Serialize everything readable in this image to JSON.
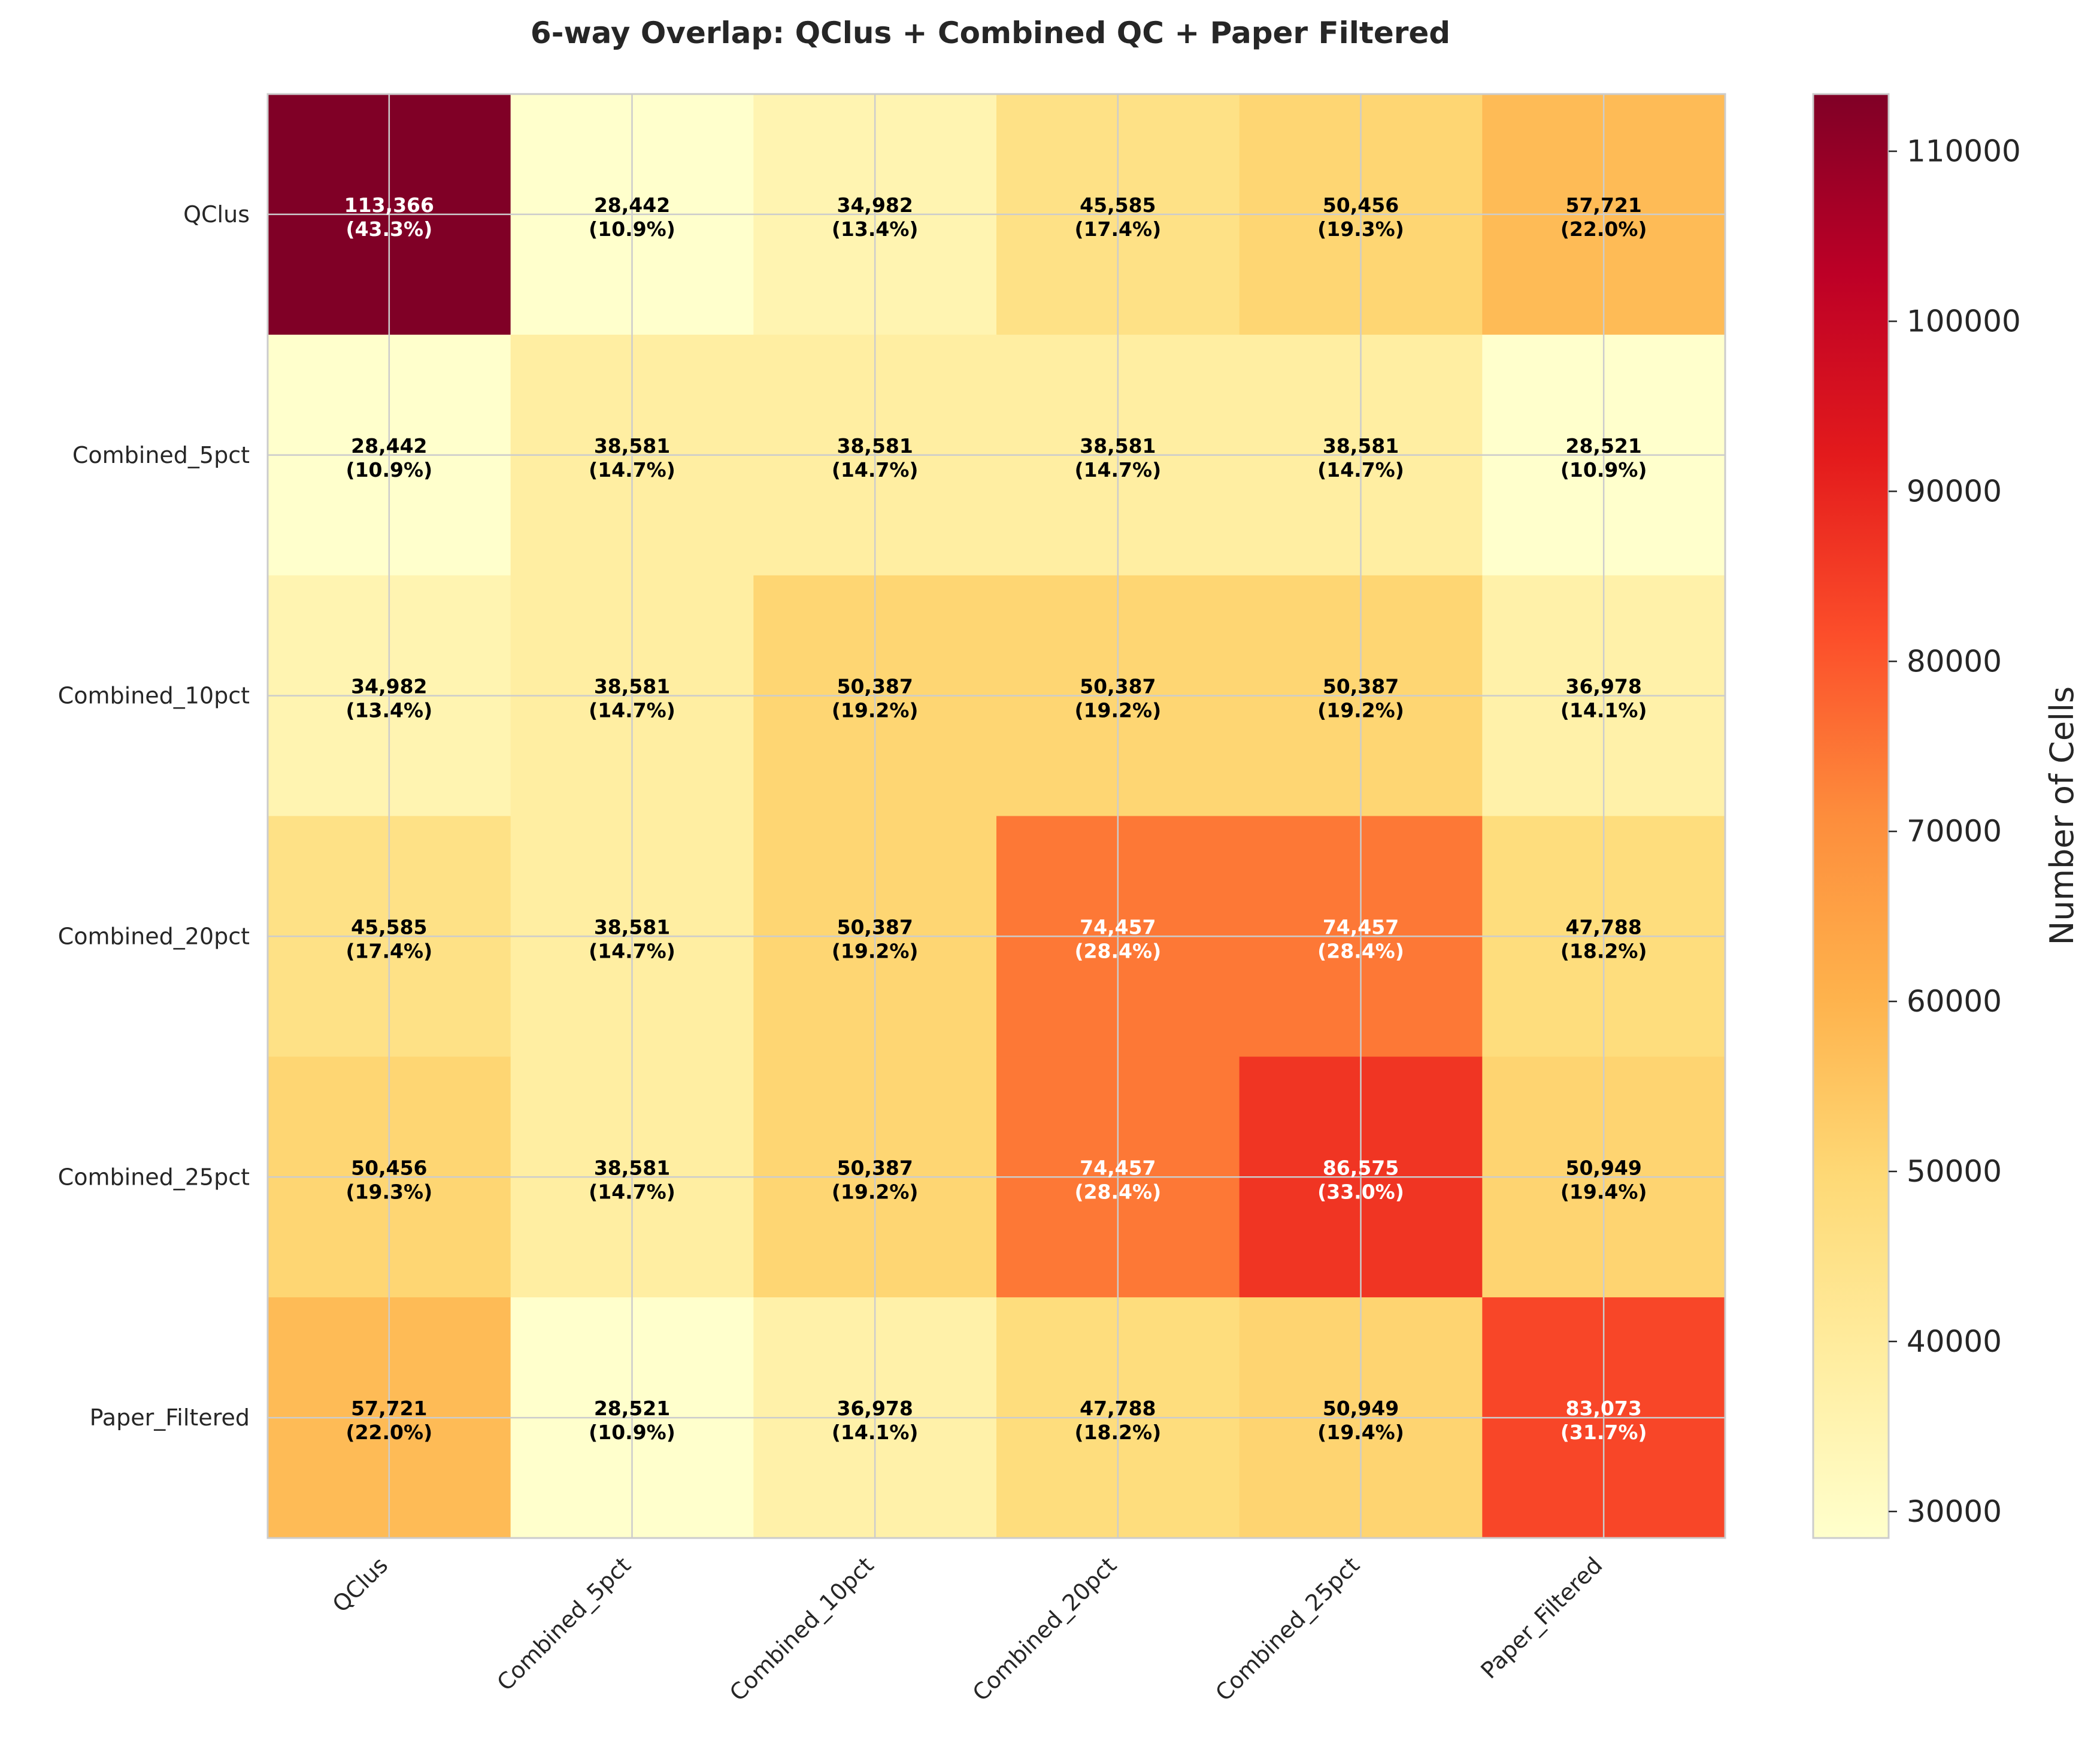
{
  "chart_data": {
    "type": "heatmap",
    "title": "6-way Overlap: QClus + Combined QC + Paper Filtered",
    "row_labels": [
      "QClus",
      "Combined_5pct",
      "Combined_10pct",
      "Combined_20pct",
      "Combined_25pct",
      "Paper_Filtered"
    ],
    "col_labels": [
      "QClus",
      "Combined_5pct",
      "Combined_10pct",
      "Combined_20pct",
      "Combined_25pct",
      "Paper_Filtered"
    ],
    "values": [
      [
        113366,
        28442,
        34982,
        45585,
        50456,
        57721
      ],
      [
        28442,
        38581,
        38581,
        38581,
        38581,
        28521
      ],
      [
        34982,
        38581,
        50387,
        50387,
        50387,
        36978
      ],
      [
        45585,
        38581,
        50387,
        74457,
        74457,
        47788
      ],
      [
        50456,
        38581,
        50387,
        74457,
        86575,
        50949
      ],
      [
        57721,
        28521,
        36978,
        47788,
        50949,
        83073
      ]
    ],
    "percents": [
      [
        "43.3%",
        "10.9%",
        "13.4%",
        "17.4%",
        "19.3%",
        "22.0%"
      ],
      [
        "10.9%",
        "14.7%",
        "14.7%",
        "14.7%",
        "14.7%",
        "10.9%"
      ],
      [
        "13.4%",
        "14.7%",
        "19.2%",
        "19.2%",
        "19.2%",
        "14.1%"
      ],
      [
        "17.4%",
        "14.7%",
        "19.2%",
        "28.4%",
        "28.4%",
        "18.2%"
      ],
      [
        "19.3%",
        "14.7%",
        "19.2%",
        "28.4%",
        "33.0%",
        "19.4%"
      ],
      [
        "22.0%",
        "10.9%",
        "14.1%",
        "18.2%",
        "19.4%",
        "31.7%"
      ]
    ],
    "colorbar": {
      "label": "Number of Cells",
      "range": [
        28442,
        113366
      ],
      "ticks": [
        30000,
        40000,
        50000,
        60000,
        70000,
        80000,
        90000,
        100000,
        110000
      ],
      "colormap": "YlOrRd"
    },
    "colormap_stops": [
      "#ffffcc",
      "#ffeda0",
      "#fed976",
      "#feb24c",
      "#fd8d3c",
      "#fc4e2a",
      "#e31a1c",
      "#bd0026",
      "#800026"
    ],
    "grid": true
  }
}
